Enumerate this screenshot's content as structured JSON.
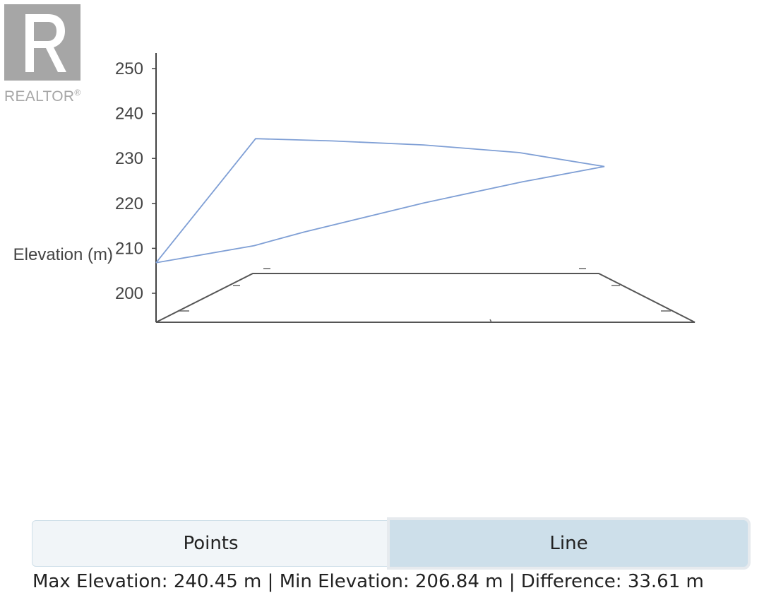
{
  "logo": {
    "text": "REALTOR",
    "mark": "®",
    "icon": "realtor-r-logo"
  },
  "chart_data": {
    "type": "line",
    "ylabel": "Elevation (m)",
    "ylim": [
      195,
      252
    ],
    "yticks": [
      200,
      210,
      220,
      230,
      240,
      250
    ],
    "projection": "3d",
    "series": [
      {
        "values": [
          206.8,
          234.4,
          233.9,
          233.0,
          231.3,
          228.2,
          224.8,
          220.1,
          213.6,
          210.6,
          206.8
        ]
      }
    ],
    "grid": false
  },
  "toggle": {
    "points_label": "Points",
    "line_label": "Line",
    "active": "Line"
  },
  "stats": {
    "max_label": "Max Elevation:",
    "max_value": "240.45 m",
    "min_label": "Min Elevation:",
    "min_value": "206.84 m",
    "diff_label": "Difference:",
    "diff_value": "33.61 m",
    "separator": "|"
  },
  "colors": {
    "line": "#7f9fd5",
    "axis": "#555555",
    "active_button": "#cddfea"
  }
}
